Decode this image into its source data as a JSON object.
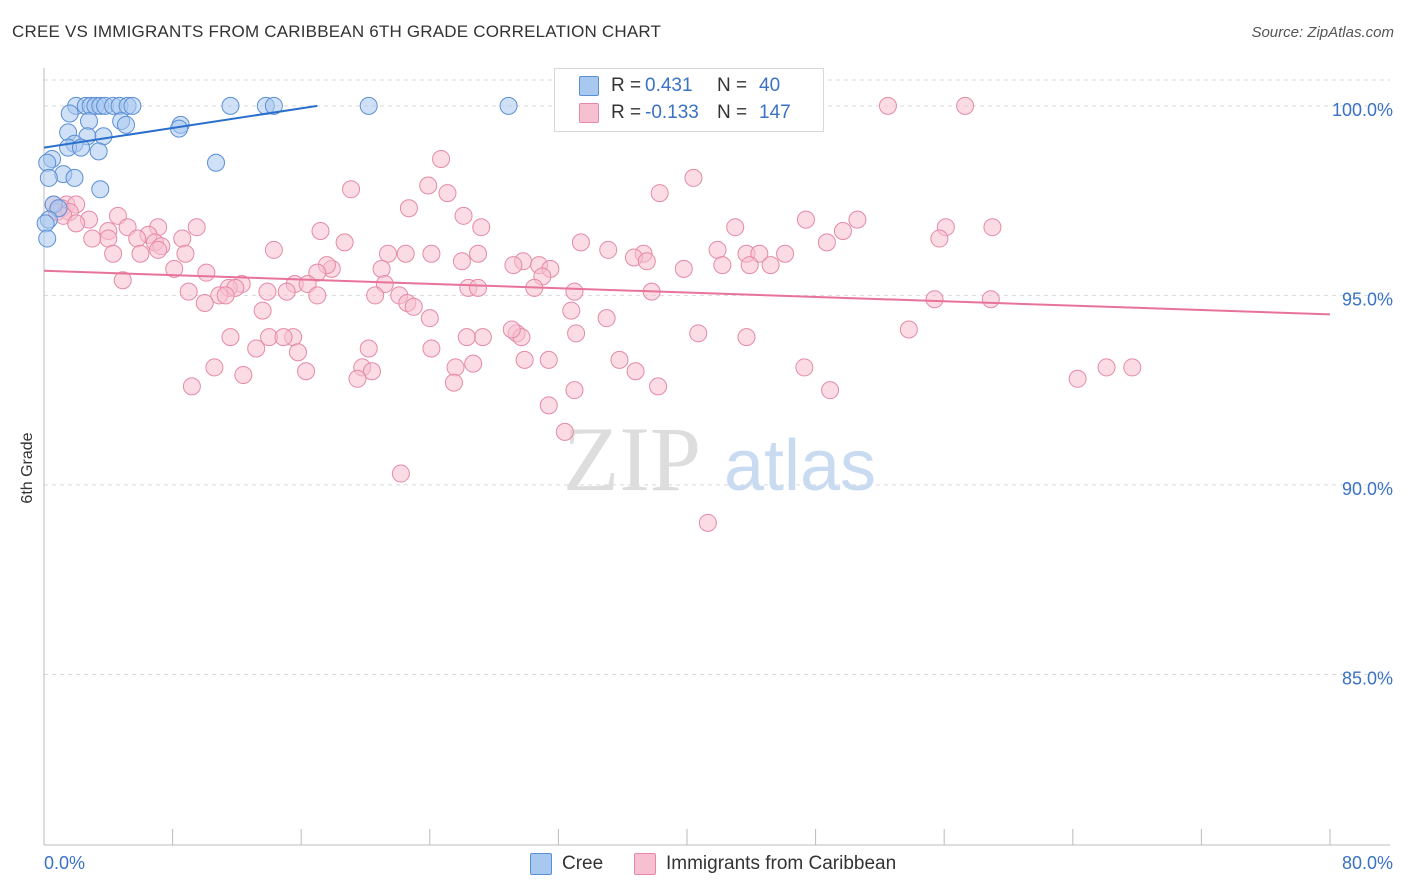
{
  "title": "CREE VS IMMIGRANTS FROM CARIBBEAN 6TH GRADE CORRELATION CHART",
  "source": "Source: ZipAtlas.com",
  "watermark": {
    "zip": "ZIP",
    "atlas": "atlas"
  },
  "legend": {
    "cree": {
      "r_label": "R =",
      "r_value": "0.431",
      "n_label": "N =",
      "n_value": "40"
    },
    "carib": {
      "r_label": "R =",
      "r_value": "-0.133",
      "n_label": "N =",
      "n_value": "147"
    }
  },
  "bottom_legend": {
    "cree": "Cree",
    "carib": "Immigrants from Caribbean"
  },
  "colors": {
    "cree_fill": "#a9c8f0",
    "cree_stroke": "#5b8fd4",
    "cree_line": "#2a6fcb",
    "carib_fill": "#f7c0d0",
    "carib_stroke": "#e589a8",
    "carib_line": "#e8739a",
    "axis_text": "#3a72c4",
    "grid": "#d9d9d9"
  },
  "chart_data": {
    "type": "scatter",
    "title": "CREE VS IMMIGRANTS FROM CARIBBEAN 6TH GRADE CORRELATION CHART",
    "xlabel": "",
    "ylabel": "6th Grade",
    "xlim": [
      0,
      80
    ],
    "ylim": [
      80.5,
      101.0
    ],
    "x_tick_labels": [
      "0.0%",
      "80.0%"
    ],
    "y_ticks": [
      85,
      90,
      95,
      100
    ],
    "y_tick_labels": [
      "85.0%",
      "90.0%",
      "95.0%",
      "100.0%"
    ],
    "grid": true,
    "series": [
      {
        "name": "Cree",
        "r": 0.431,
        "n": 40,
        "trend": {
          "x": [
            0,
            17
          ],
          "y": [
            98.9,
            100.0
          ]
        },
        "points": [
          [
            2.0,
            100.0
          ],
          [
            2.6,
            100.0
          ],
          [
            2.9,
            100.0
          ],
          [
            3.2,
            100.0
          ],
          [
            3.5,
            100.0
          ],
          [
            3.8,
            100.0
          ],
          [
            4.3,
            100.0
          ],
          [
            4.7,
            100.0
          ],
          [
            5.2,
            100.0
          ],
          [
            5.5,
            100.0
          ],
          [
            11.6,
            100.0
          ],
          [
            13.8,
            100.0
          ],
          [
            14.3,
            100.0
          ],
          [
            20.2,
            100.0
          ],
          [
            28.9,
            100.0
          ],
          [
            1.6,
            99.8
          ],
          [
            2.8,
            99.6
          ],
          [
            4.8,
            99.6
          ],
          [
            5.1,
            99.5
          ],
          [
            8.5,
            99.5
          ],
          [
            8.4,
            99.4
          ],
          [
            1.5,
            99.3
          ],
          [
            2.7,
            99.2
          ],
          [
            3.7,
            99.2
          ],
          [
            1.9,
            99.0
          ],
          [
            1.5,
            98.9
          ],
          [
            2.3,
            98.9
          ],
          [
            3.4,
            98.8
          ],
          [
            0.5,
            98.6
          ],
          [
            0.2,
            98.5
          ],
          [
            10.7,
            98.5
          ],
          [
            1.2,
            98.2
          ],
          [
            1.9,
            98.1
          ],
          [
            0.3,
            98.1
          ],
          [
            3.5,
            97.8
          ],
          [
            0.6,
            97.4
          ],
          [
            0.9,
            97.3
          ],
          [
            0.3,
            97.0
          ],
          [
            0.1,
            96.9
          ],
          [
            0.2,
            96.5
          ]
        ]
      },
      {
        "name": "Immigrants from Caribbean",
        "r": -0.133,
        "n": 147,
        "trend": {
          "x": [
            0,
            80
          ],
          "y": [
            95.65,
            94.5
          ]
        },
        "points": [
          [
            52.5,
            100.0
          ],
          [
            57.3,
            100.0
          ],
          [
            24.7,
            98.6
          ],
          [
            40.4,
            98.1
          ],
          [
            23.9,
            97.9
          ],
          [
            19.1,
            97.8
          ],
          [
            25.1,
            97.7
          ],
          [
            38.3,
            97.7
          ],
          [
            22.7,
            97.3
          ],
          [
            0.6,
            97.4
          ],
          [
            1.4,
            97.4
          ],
          [
            1.1,
            97.3
          ],
          [
            2.0,
            97.4
          ],
          [
            0.8,
            97.2
          ],
          [
            1.6,
            97.2
          ],
          [
            1.2,
            97.1
          ],
          [
            2.8,
            97.0
          ],
          [
            4.6,
            97.1
          ],
          [
            2.0,
            96.9
          ],
          [
            26.1,
            97.1
          ],
          [
            47.4,
            97.0
          ],
          [
            50.6,
            97.0
          ],
          [
            43.0,
            96.8
          ],
          [
            7.1,
            96.8
          ],
          [
            9.5,
            96.8
          ],
          [
            5.2,
            96.8
          ],
          [
            4.0,
            96.7
          ],
          [
            6.5,
            96.6
          ],
          [
            27.2,
            96.8
          ],
          [
            17.2,
            96.7
          ],
          [
            56.1,
            96.8
          ],
          [
            59.0,
            96.8
          ],
          [
            49.7,
            96.7
          ],
          [
            4.0,
            96.5
          ],
          [
            5.8,
            96.5
          ],
          [
            3.0,
            96.5
          ],
          [
            8.6,
            96.5
          ],
          [
            6.9,
            96.4
          ],
          [
            18.7,
            96.4
          ],
          [
            33.4,
            96.4
          ],
          [
            48.7,
            96.4
          ],
          [
            55.7,
            96.5
          ],
          [
            7.3,
            96.3
          ],
          [
            14.3,
            96.2
          ],
          [
            22.5,
            96.1
          ],
          [
            4.3,
            96.1
          ],
          [
            6.0,
            96.1
          ],
          [
            7.1,
            96.2
          ],
          [
            8.8,
            96.1
          ],
          [
            21.4,
            96.1
          ],
          [
            24.1,
            96.1
          ],
          [
            27.0,
            96.1
          ],
          [
            35.1,
            96.2
          ],
          [
            37.3,
            96.1
          ],
          [
            41.9,
            96.2
          ],
          [
            43.7,
            96.1
          ],
          [
            44.5,
            96.1
          ],
          [
            46.1,
            96.1
          ],
          [
            36.7,
            96.0
          ],
          [
            26.0,
            95.9
          ],
          [
            29.8,
            95.9
          ],
          [
            30.8,
            95.8
          ],
          [
            37.5,
            95.9
          ],
          [
            42.2,
            95.8
          ],
          [
            43.9,
            95.8
          ],
          [
            45.2,
            95.8
          ],
          [
            8.1,
            95.7
          ],
          [
            10.1,
            95.6
          ],
          [
            17.9,
            95.7
          ],
          [
            17.6,
            95.8
          ],
          [
            17.0,
            95.6
          ],
          [
            21.0,
            95.7
          ],
          [
            29.2,
            95.8
          ],
          [
            31.5,
            95.7
          ],
          [
            31.0,
            95.5
          ],
          [
            39.8,
            95.7
          ],
          [
            4.9,
            95.4
          ],
          [
            12.3,
            95.3
          ],
          [
            15.6,
            95.3
          ],
          [
            16.4,
            95.3
          ],
          [
            21.2,
            95.3
          ],
          [
            26.4,
            95.2
          ],
          [
            27.0,
            95.2
          ],
          [
            11.5,
            95.2
          ],
          [
            11.9,
            95.2
          ],
          [
            9.0,
            95.1
          ],
          [
            13.9,
            95.1
          ],
          [
            15.1,
            95.1
          ],
          [
            10.9,
            95.0
          ],
          [
            11.3,
            95.0
          ],
          [
            17.0,
            95.0
          ],
          [
            20.6,
            95.0
          ],
          [
            22.1,
            95.0
          ],
          [
            33.0,
            95.1
          ],
          [
            37.8,
            95.1
          ],
          [
            30.5,
            95.2
          ],
          [
            22.6,
            94.8
          ],
          [
            23.0,
            94.7
          ],
          [
            10.0,
            94.8
          ],
          [
            13.6,
            94.6
          ],
          [
            32.8,
            94.6
          ],
          [
            35.0,
            94.4
          ],
          [
            58.9,
            94.9
          ],
          [
            55.4,
            94.9
          ],
          [
            24.0,
            94.4
          ],
          [
            33.1,
            94.0
          ],
          [
            40.7,
            94.0
          ],
          [
            29.4,
            94.0
          ],
          [
            29.7,
            93.9
          ],
          [
            43.7,
            93.9
          ],
          [
            11.6,
            93.9
          ],
          [
            14.0,
            93.9
          ],
          [
            15.5,
            93.9
          ],
          [
            20.2,
            93.6
          ],
          [
            14.9,
            93.9
          ],
          [
            24.1,
            93.6
          ],
          [
            29.1,
            94.1
          ],
          [
            27.3,
            93.9
          ],
          [
            26.3,
            93.9
          ],
          [
            53.8,
            94.1
          ],
          [
            13.2,
            93.6
          ],
          [
            15.8,
            93.5
          ],
          [
            10.6,
            93.1
          ],
          [
            19.8,
            93.1
          ],
          [
            12.4,
            92.9
          ],
          [
            16.3,
            93.0
          ],
          [
            20.4,
            93.0
          ],
          [
            26.7,
            93.2
          ],
          [
            29.9,
            93.3
          ],
          [
            31.4,
            93.3
          ],
          [
            35.8,
            93.3
          ],
          [
            47.3,
            93.1
          ],
          [
            25.6,
            93.1
          ],
          [
            67.7,
            93.1
          ],
          [
            25.5,
            92.7
          ],
          [
            36.8,
            93.0
          ],
          [
            9.2,
            92.6
          ],
          [
            19.5,
            92.8
          ],
          [
            33.0,
            92.5
          ],
          [
            38.2,
            92.6
          ],
          [
            48.9,
            92.5
          ],
          [
            64.3,
            92.8
          ],
          [
            31.4,
            92.1
          ],
          [
            32.4,
            91.4
          ],
          [
            22.2,
            90.3
          ],
          [
            41.3,
            89.0
          ],
          [
            66.1,
            93.1
          ]
        ]
      }
    ]
  }
}
